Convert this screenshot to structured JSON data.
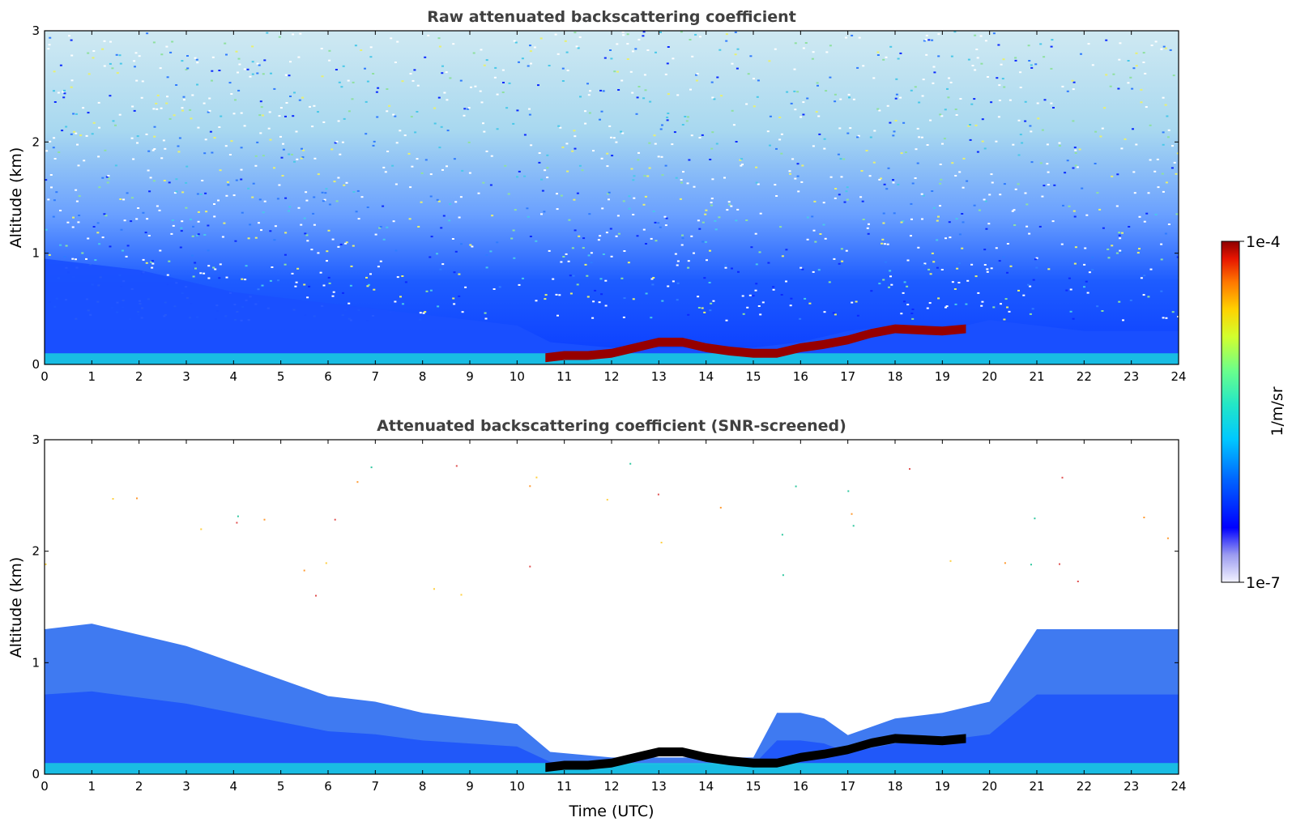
{
  "chart_data": [
    {
      "type": "heatmap",
      "title": "Raw attenuated backscattering coefficient",
      "xlabel": "",
      "ylabel": "Altitude (km)",
      "xlim": [
        0,
        24
      ],
      "ylim": [
        0,
        3
      ],
      "x_ticks": [
        "0",
        "1",
        "2",
        "3",
        "4",
        "5",
        "6",
        "7",
        "8",
        "9",
        "10",
        "11",
        "12",
        "13",
        "14",
        "15",
        "16",
        "17",
        "18",
        "19",
        "20",
        "21",
        "22",
        "23",
        "24"
      ],
      "y_ticks": [
        "0",
        "1",
        "2",
        "3"
      ],
      "grid": false,
      "boundary_layer_top_km": [
        [
          0,
          0.95
        ],
        [
          2,
          0.85
        ],
        [
          4,
          0.65
        ],
        [
          6,
          0.55
        ],
        [
          8,
          0.45
        ],
        [
          10,
          0.35
        ],
        [
          10.7,
          0.2
        ],
        [
          12,
          0.15
        ],
        [
          14,
          0.15
        ],
        [
          15,
          0.15
        ],
        [
          16,
          0.2
        ],
        [
          17,
          0.3
        ],
        [
          18,
          0.35
        ],
        [
          19,
          0.3
        ],
        [
          20,
          0.4
        ],
        [
          21,
          0.35
        ],
        [
          22,
          0.3
        ],
        [
          23,
          0.3
        ],
        [
          24,
          0.3
        ]
      ],
      "cloud_layer_km": [
        [
          10.6,
          0.06
        ],
        [
          11,
          0.08
        ],
        [
          11.5,
          0.08
        ],
        [
          12,
          0.1
        ],
        [
          12.5,
          0.15
        ],
        [
          13,
          0.2
        ],
        [
          13.5,
          0.2
        ],
        [
          14,
          0.15
        ],
        [
          14.5,
          0.12
        ],
        [
          15,
          0.1
        ],
        [
          15.5,
          0.1
        ],
        [
          16,
          0.15
        ],
        [
          16.5,
          0.18
        ],
        [
          17,
          0.22
        ],
        [
          17.5,
          0.28
        ],
        [
          18,
          0.32
        ],
        [
          19,
          0.3
        ],
        [
          19.5,
          0.32
        ]
      ],
      "colorbar": {
        "min_label": "1e-7",
        "max_label": "1e-4",
        "label": "1/m/sr",
        "scale": "log",
        "colormap": "jet"
      }
    },
    {
      "type": "heatmap",
      "title": "Attenuated backscattering coefficient (SNR-screened)",
      "xlabel": "Time (UTC)",
      "ylabel": "Altitude (km)",
      "xlim": [
        0,
        24
      ],
      "ylim": [
        0,
        3
      ],
      "x_ticks": [
        "0",
        "1",
        "2",
        "3",
        "4",
        "5",
        "6",
        "7",
        "8",
        "9",
        "10",
        "11",
        "12",
        "13",
        "14",
        "15",
        "16",
        "17",
        "18",
        "19",
        "20",
        "21",
        "22",
        "23",
        "24"
      ],
      "y_ticks": [
        "0",
        "1",
        "2",
        "3"
      ],
      "grid": false,
      "signal_top_km": [
        [
          0,
          1.3
        ],
        [
          1,
          1.35
        ],
        [
          2,
          1.25
        ],
        [
          3,
          1.15
        ],
        [
          4,
          1.0
        ],
        [
          5,
          0.85
        ],
        [
          6,
          0.7
        ],
        [
          7,
          0.65
        ],
        [
          8,
          0.55
        ],
        [
          9,
          0.5
        ],
        [
          10,
          0.45
        ],
        [
          10.7,
          0.2
        ],
        [
          12,
          0.15
        ],
        [
          14,
          0.15
        ],
        [
          15,
          0.15
        ],
        [
          15.5,
          0.55
        ],
        [
          16,
          0.55
        ],
        [
          16.5,
          0.5
        ],
        [
          17,
          0.35
        ],
        [
          18,
          0.5
        ],
        [
          19,
          0.55
        ],
        [
          20,
          0.65
        ],
        [
          21,
          1.3
        ],
        [
          22,
          1.3
        ],
        [
          23,
          1.3
        ],
        [
          24,
          1.3
        ]
      ],
      "colorbar": {
        "min_label": "1e-7",
        "max_label": "1e-4",
        "label": "1/m/sr",
        "scale": "log",
        "colormap": "jet"
      }
    }
  ]
}
